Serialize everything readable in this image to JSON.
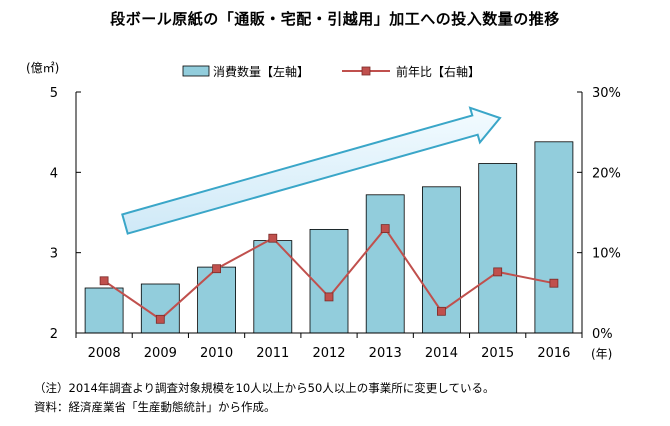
{
  "chart_data": {
    "type": "bar",
    "title": "段ボール原紙の「通販・宅配・引越用」加工への投入数量の推移",
    "categories": [
      "2008",
      "2009",
      "2010",
      "2011",
      "2012",
      "2013",
      "2014",
      "2015",
      "2016"
    ],
    "xlabel": "(年)",
    "y_left_label": "(億㎡)",
    "y_left_lim": [
      2,
      5
    ],
    "y_left_ticks": [
      "2",
      "3",
      "4",
      "5"
    ],
    "y_right_lim": [
      0,
      30
    ],
    "y_right_ticks": [
      "0%",
      "10%",
      "20%",
      "30%"
    ],
    "series": [
      {
        "name": "消費数量【左軸】",
        "type": "bar",
        "axis": "left",
        "color": "#92cddc",
        "values": [
          2.56,
          2.61,
          2.82,
          3.15,
          3.29,
          3.72,
          3.82,
          4.11,
          4.38
        ]
      },
      {
        "name": "前年比【右軸】",
        "type": "line",
        "axis": "right",
        "color": "#c0504d",
        "values": [
          6.5,
          1.7,
          8.0,
          11.8,
          4.5,
          13.0,
          2.7,
          7.6,
          6.2
        ]
      }
    ],
    "annotation": "trend-arrow (upward, light blue)",
    "grid": false,
    "legend_position": "top"
  },
  "notes": {
    "note1": "（注）2014年調査より調査対象規模を10人以上から50人以上の事業所に変更している。",
    "note2": "資料：経済産業省「生産動態統計」から作成。"
  }
}
